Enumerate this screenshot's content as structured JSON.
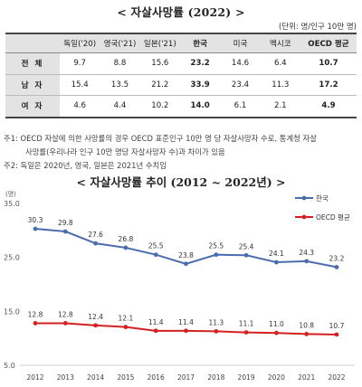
{
  "title": "< 자살사망률 (2022) >",
  "unit": "(단위: 명/인구 10만 명)",
  "table": {
    "headers": [
      "",
      "독일('20)",
      "영국('21)",
      "일본('21)",
      "한국",
      "미국",
      "멕시코",
      "OECD 평균"
    ],
    "rows": [
      {
        "label": "전 체",
        "values": [
          "9.7",
          "8.8",
          "15.6",
          "23.2",
          "14.6",
          "6.4",
          "10.7"
        ]
      },
      {
        "label": "남 자",
        "values": [
          "15.4",
          "13.5",
          "21.2",
          "33.9",
          "23.4",
          "11.3",
          "17.2"
        ]
      },
      {
        "label": "여 자",
        "values": [
          "4.6",
          "4.4",
          "10.2",
          "14.0",
          "6.1",
          "2.1",
          "4.9"
        ]
      }
    ]
  },
  "notes": {
    "n1a": "주1: OECD 자살에 의한 사망률의 경우 OECD 표준인구 10만 명 당 자살사망자 수로, 통계청 자살",
    "n1b": "사망률(우리나라 인구 10만 명당 자살사망자 수)과 차이가 있음",
    "n2": "주2: 독일은 2020년, 영국, 일본은 2021년 수치임"
  },
  "chart_title": "< 자살사망률 추이 (2012 ~ 2022년) >",
  "colors": {
    "korea": "#4a6cae",
    "oecd": "#d42020"
  },
  "chart_data": {
    "type": "line",
    "title": "< 자살사망률 추이 (2012 ~ 2022년) >",
    "ylabel": "(명)",
    "x": [
      "2012",
      "2013",
      "2014",
      "2015",
      "2016",
      "2017",
      "2018",
      "2019",
      "2020",
      "2021",
      "2022"
    ],
    "ylim": [
      5.0,
      35.0
    ],
    "yticks": [
      "35.0",
      "25.0",
      "15.0",
      "5.0"
    ],
    "grid": false,
    "legend": "top-right",
    "series": [
      {
        "name": "한국",
        "values": [
          30.3,
          29.8,
          27.6,
          26.8,
          25.5,
          23.8,
          25.5,
          25.4,
          24.1,
          24.3,
          23.2
        ],
        "labels": [
          "30.3",
          "29.8",
          "27.6",
          "26.8",
          "25.5",
          "23.8",
          "25.5",
          "25.4",
          "24.1",
          "24.3",
          "23.2"
        ]
      },
      {
        "name": "OECD 평균",
        "values": [
          12.8,
          12.8,
          12.4,
          12.1,
          11.4,
          11.4,
          11.3,
          11.1,
          11.0,
          10.8,
          10.7
        ],
        "labels": [
          "12.8",
          "12.8",
          "12.4",
          "12.1",
          "11.4",
          "11.4",
          "11.3",
          "11.1",
          "11.0",
          "10.8",
          "10.7"
        ]
      }
    ]
  }
}
